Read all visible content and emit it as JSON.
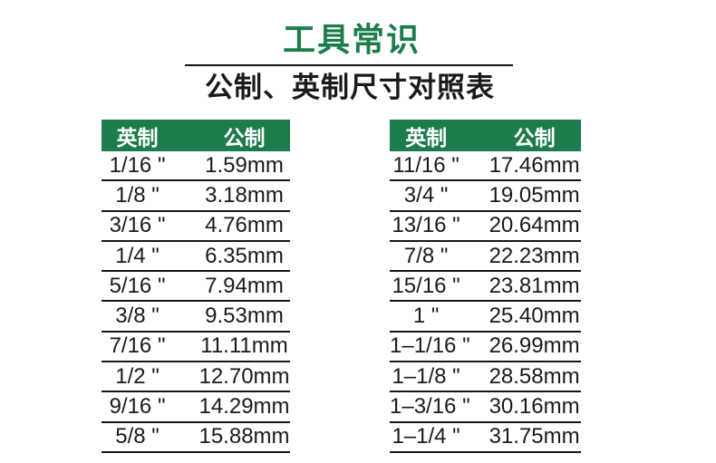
{
  "page": {
    "title": "工具常识",
    "subtitle": "公制、英制尺寸对照表"
  },
  "colors": {
    "accent_green": "#1d7c4b",
    "header_text": "#ffffff",
    "body_text": "#1a1a1a",
    "line": "#161616",
    "background": "#ffffff"
  },
  "table_header": {
    "imperial": "英制",
    "metric": "公制"
  },
  "left_table": {
    "rows": [
      {
        "imperial": "1/16 \"",
        "metric": "1.59mm"
      },
      {
        "imperial": "1/8 \"",
        "metric": "3.18mm"
      },
      {
        "imperial": "3/16 \"",
        "metric": "4.76mm"
      },
      {
        "imperial": "1/4 \"",
        "metric": "6.35mm"
      },
      {
        "imperial": "5/16 \"",
        "metric": "7.94mm"
      },
      {
        "imperial": "3/8 \"",
        "metric": "9.53mm"
      },
      {
        "imperial": "7/16 \"",
        "metric": "11.11mm"
      },
      {
        "imperial": "1/2 \"",
        "metric": "12.70mm"
      },
      {
        "imperial": "9/16 \"",
        "metric": "14.29mm"
      },
      {
        "imperial": "5/8 \"",
        "metric": "15.88mm"
      }
    ]
  },
  "right_table": {
    "rows": [
      {
        "imperial": "11/16 \"",
        "metric": "17.46mm"
      },
      {
        "imperial": "3/4 \"",
        "metric": "19.05mm"
      },
      {
        "imperial": "13/16 \"",
        "metric": "20.64mm"
      },
      {
        "imperial": "7/8 \"",
        "metric": "22.23mm"
      },
      {
        "imperial": "15/16 \"",
        "metric": "23.81mm"
      },
      {
        "imperial": "1 \"",
        "metric": "25.40mm"
      },
      {
        "imperial": "1–1/16 \"",
        "metric": "26.99mm"
      },
      {
        "imperial": "1–1/8 \"",
        "metric": "28.58mm"
      },
      {
        "imperial": "1–3/16 \"",
        "metric": "30.16mm"
      },
      {
        "imperial": "1–1/4 \"",
        "metric": "31.75mm"
      }
    ]
  }
}
